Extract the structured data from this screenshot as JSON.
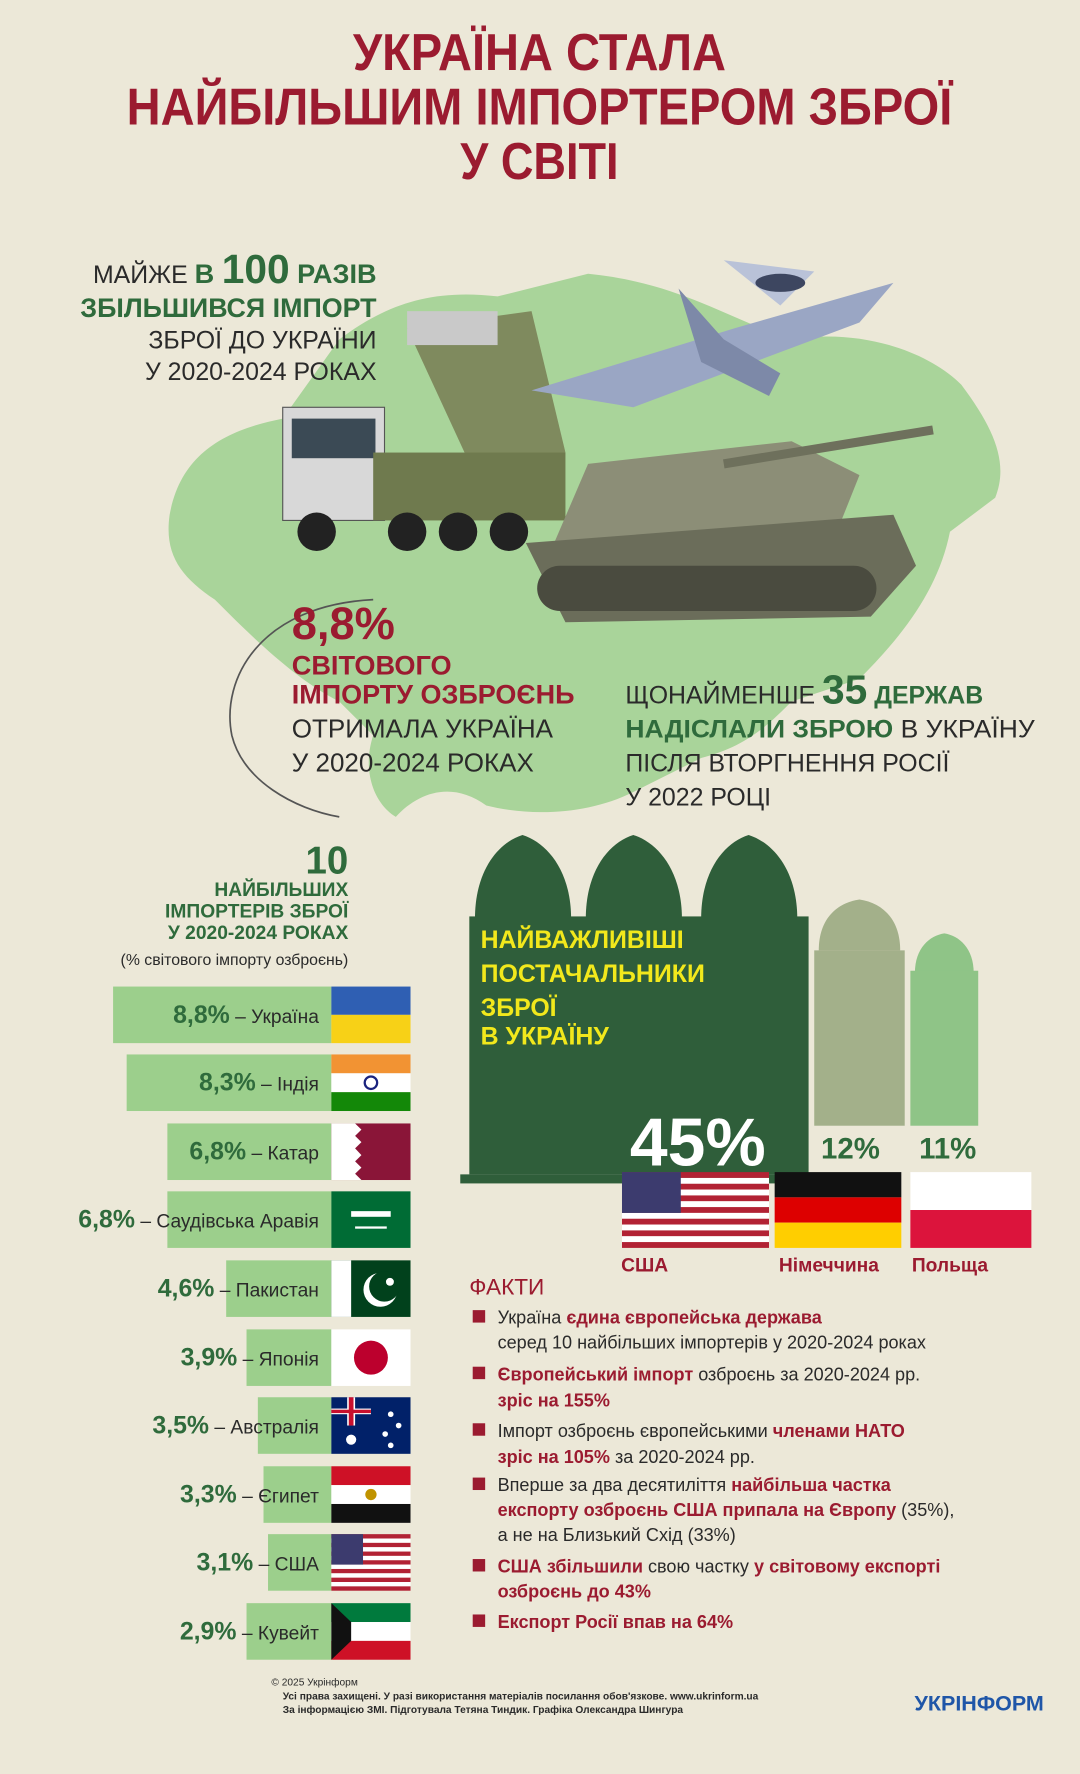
{
  "title": [
    "УКРАЇНА СТАЛА",
    "НАЙБІЛЬШИМ ІМПОРТЕРОМ ЗБРОЇ",
    "У СВІТІ"
  ],
  "growth": {
    "lines": [
      [
        "МАЙЖЕ ",
        "В ",
        "100",
        " РАЗІВ"
      ],
      [
        "ЗБІЛЬШИВСЯ ІМПОРТ"
      ],
      [
        "ЗБРОЇ ДО УКРАЇНИ"
      ],
      [
        "У 2020-2024 РОКАХ"
      ]
    ]
  },
  "share": {
    "value": "8,8%",
    "lines": [
      "СВІТОВОГО",
      "ІМПОРТУ ОЗБРОЄНЬ",
      "ОТРИМАЛА УКРАЇНА",
      "У 2020-2024 РОКАХ"
    ]
  },
  "states": {
    "lines": [
      [
        "ЩОНАЙМЕНШЕ ",
        "35",
        " ДЕРЖАВ"
      ],
      [
        "НАДІСЛАЛИ ЗБРОЮ",
        " В УКРАЇНУ"
      ],
      [
        "ПІСЛЯ ВТОРГНЕННЯ РОСІЇ"
      ],
      [
        "У 2022 РОЦІ"
      ]
    ]
  },
  "top10": {
    "count": "10",
    "title": [
      "НАЙБІЛЬШИХ",
      "ІМПОРТЕРІВ ЗБРОЇ",
      "У 2020-2024 РОКАХ"
    ],
    "subtitle": "(% світового імпорту озброєнь)",
    "rows": [
      {
        "share": "8,8%",
        "country": " – Україна"
      },
      {
        "share": "8,3%",
        "country": " – Індія"
      },
      {
        "share": "6,8%",
        "country": " – Катар"
      },
      {
        "share": "6,8%",
        "country": " – Саудівська Аравія"
      },
      {
        "share": "4,6%",
        "country": " – Пакистан"
      },
      {
        "share": "3,9%",
        "country": " – Японія"
      },
      {
        "share": "3,5%",
        "country": " – Австралія"
      },
      {
        "share": "3,3%",
        "country": " – Єгипет"
      },
      {
        "share": "3,1%",
        "country": " – США"
      },
      {
        "share": "2,9%",
        "country": " – Кувейт"
      }
    ]
  },
  "suppliers": {
    "title": [
      "НАЙВАЖЛИВІШІ",
      "ПОСТАЧАЛЬНИКИ",
      "ЗБРОЇ",
      "В УКРАЇНУ"
    ],
    "items": [
      {
        "share": "45%",
        "country": "США"
      },
      {
        "share": "12%",
        "country": "Німеччина"
      },
      {
        "share": "11%",
        "country": "Польща"
      }
    ]
  },
  "facts": {
    "title": "ФАКТИ",
    "items": [
      [
        [
          "Україна ",
          "єдина європейська держава"
        ],
        [
          "серед 10 найбільших імпортерів у 2020-2024 роках"
        ]
      ],
      [
        [
          "Європейський імпорт",
          " озброєнь за 2020-2024 рр."
        ],
        [
          "зріс на 155%"
        ]
      ],
      [
        [
          "Імпорт озброєнь європейськими ",
          "членами НАТО"
        ],
        [
          "зріс на 105%",
          " за 2020-2024 рр."
        ]
      ],
      [
        [
          "Вперше за два десятиліття ",
          "найбільша частка"
        ],
        [
          "експорту озброєнь США припала на Європу",
          " (35%),"
        ],
        [
          "а не на Близький Схід (33%)"
        ]
      ],
      [
        [
          "США збільшили",
          " свою частку ",
          "у світовому експорті"
        ],
        [
          "озброєнь до 43%"
        ]
      ],
      [
        [
          "Експорт Росії впав на 64%"
        ]
      ]
    ]
  },
  "footer": {
    "lines": [
      "© 2025 Укрінформ",
      "Усі права захищені. У разі використання матеріалів посилання обов'язкове. www.ukrinform.ua",
      "За інформацією ЗМІ. Підготувала Тетяна Тиндик. Графіка Олександра Шингура"
    ],
    "logo": "УКРІНФОРМ"
  }
}
